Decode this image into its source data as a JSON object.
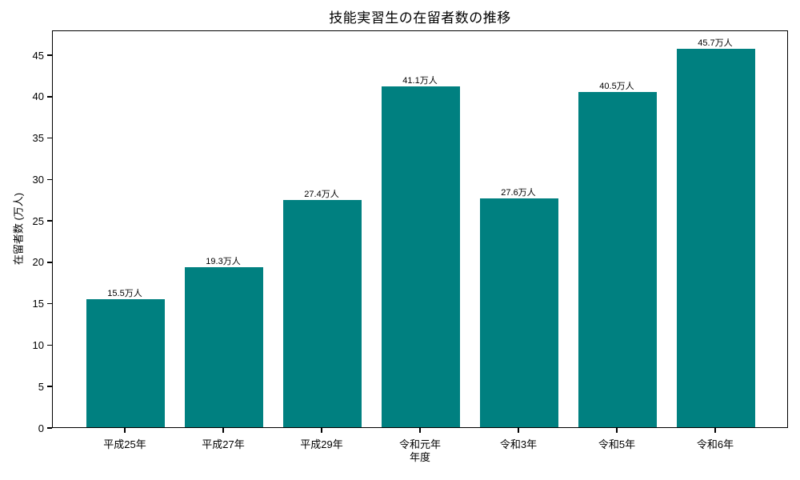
{
  "chart_data": {
    "type": "bar",
    "title": "技能実習生の在留者数の推移",
    "xlabel": "年度",
    "ylabel": "在留者数 (万人)",
    "categories": [
      "平成25年",
      "平成27年",
      "平成29年",
      "令和元年",
      "令和3年",
      "令和5年",
      "令和6年"
    ],
    "values": [
      15.5,
      19.3,
      27.4,
      41.1,
      27.6,
      40.5,
      45.7
    ],
    "value_labels": [
      "15.5万人",
      "19.3万人",
      "27.4万人",
      "41.1万人",
      "27.6万人",
      "40.5万人",
      "45.7万人"
    ],
    "yticks": [
      0,
      5,
      10,
      15,
      20,
      25,
      30,
      35,
      40,
      45
    ],
    "ylim": [
      0,
      48
    ],
    "bar_color": "#008080",
    "grid": false,
    "legend": "none"
  }
}
